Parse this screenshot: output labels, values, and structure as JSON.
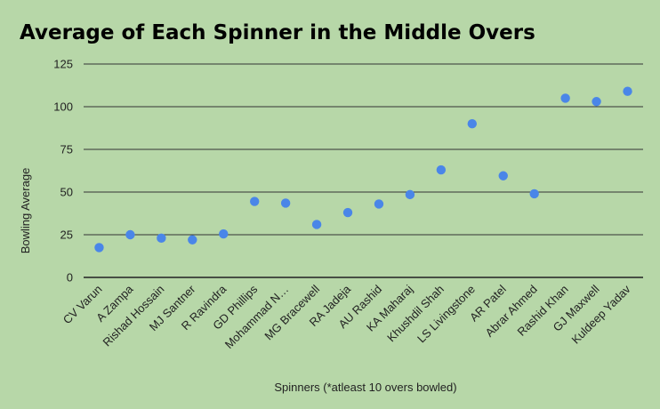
{
  "chart_data": {
    "type": "scatter",
    "title": "Average of Each Spinner in the Middle Overs",
    "xlabel": "Spinners (*atleast 10 overs bowled)",
    "ylabel": "Bowling Average",
    "ylim": [
      0,
      125
    ],
    "yticks": [
      0,
      25,
      50,
      75,
      100,
      125
    ],
    "grid": true,
    "categories": [
      "CV Varun",
      "A Zampa",
      "Rishad Hossain",
      "MJ Santner",
      "R Ravindra",
      "GD Phillips",
      "Mohammad N…",
      "MG Bracewell",
      "RA Jadeja",
      "AU Rashid",
      "KA Maharaj",
      "Khushdil Shah",
      "LS Livingstone",
      "AR Patel",
      "Abrar Ahmed",
      "Rashid Khan",
      "GJ Maxwell",
      "Kuldeep Yadav"
    ],
    "series": [
      {
        "name": "Bowling Average",
        "color": "#4a86e8",
        "values": [
          17.5,
          25,
          23,
          22,
          25.5,
          44.5,
          43.5,
          31,
          38,
          43,
          48.5,
          63,
          90,
          59.5,
          49,
          105,
          103,
          109
        ]
      }
    ]
  }
}
